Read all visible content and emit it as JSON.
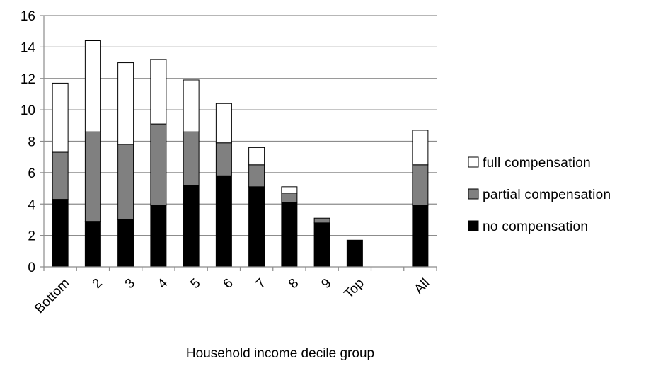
{
  "chart_data": {
    "type": "bar",
    "stacked": true,
    "categories": [
      "Bottom",
      "2",
      "3",
      "4",
      "5",
      "6",
      "7",
      "8",
      "9",
      "Top",
      "",
      "All"
    ],
    "series": [
      {
        "name": "no compensation",
        "color": "#000000",
        "values": [
          4.3,
          2.9,
          3.0,
          3.9,
          5.2,
          5.8,
          5.1,
          4.1,
          2.8,
          1.7,
          null,
          3.9
        ]
      },
      {
        "name": "partial compensation",
        "color": "#808080",
        "values": [
          3.0,
          5.7,
          4.8,
          5.2,
          3.4,
          2.1,
          1.4,
          0.6,
          0.3,
          0.0,
          null,
          2.6
        ]
      },
      {
        "name": "full compensation",
        "color": "#ffffff",
        "values": [
          4.4,
          5.8,
          5.2,
          4.1,
          3.3,
          2.5,
          1.1,
          0.4,
          0.0,
          0.0,
          null,
          2.2
        ]
      }
    ],
    "legend_order": [
      "full compensation",
      "partial compensation",
      "no compensation"
    ],
    "xlabel": "Household income decile group",
    "ylabel": "",
    "ylim": [
      0,
      16
    ],
    "yticks": [
      0,
      2,
      4,
      6,
      8,
      10,
      12,
      14,
      16
    ],
    "grid": "horizontal",
    "legend_position": "right"
  }
}
